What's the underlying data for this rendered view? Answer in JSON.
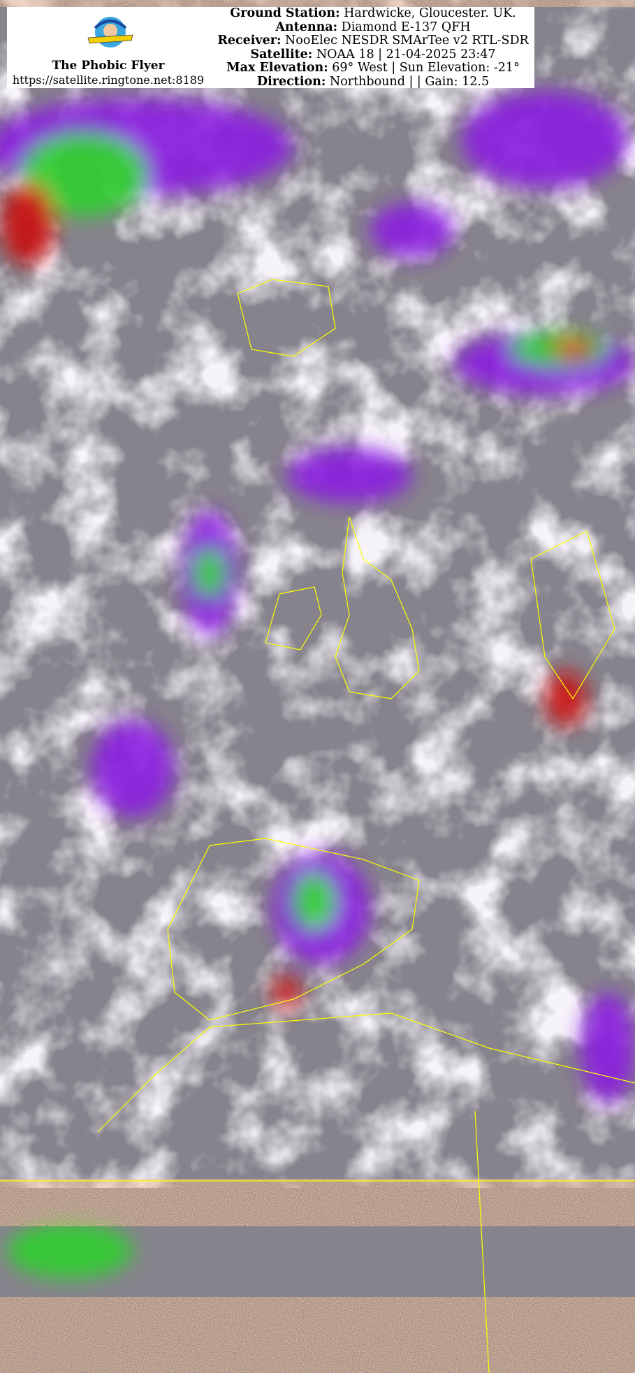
{
  "image": {
    "type": "NOAA APT satellite image (colour-enhanced infrared)",
    "colors": {
      "cloud_grey": "#8a8790",
      "cold_cloud_purple": "#8a1fe0",
      "green": "#2fd02f",
      "red": "#c81010",
      "coastline": "#ffff00",
      "noise_orange": "#c07a40"
    }
  },
  "header": {
    "logo_text": "The Phobic Flyer",
    "brand_name": "The Phobic Flyer",
    "url": "https://satellite.ringtone.net:8189",
    "lines": [
      {
        "label": "Ground Station:",
        "value": " Hardwicke, Gloucester. UK."
      },
      {
        "label": "Antenna:",
        "value": " Diamond E-137 QFH"
      },
      {
        "label": "Receiver:",
        "value": " NooElec NESDR SMArTee v2 RTL-SDR"
      },
      {
        "label": "Satellite:",
        "value": " NOAA 18 | 21-04-2025 23:47"
      },
      {
        "label": "Max Elevation:",
        "value": " 69° West | Sun Elevation: -21°"
      },
      {
        "label": "Direction:",
        "value": " Northbound | | Gain: 12.5"
      }
    ]
  }
}
